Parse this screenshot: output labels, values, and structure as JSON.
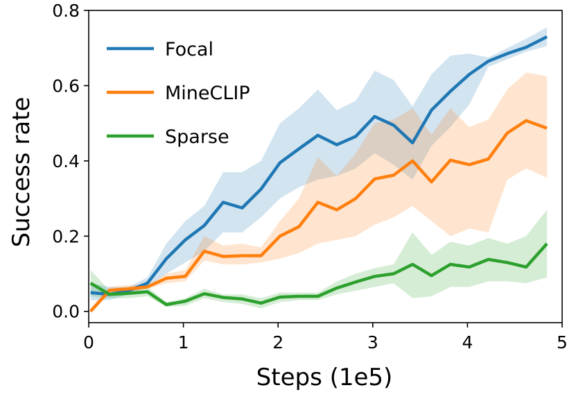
{
  "chart_data": {
    "type": "line",
    "xlabel": "Steps (1e5)",
    "ylabel": "Success rate",
    "xlim": [
      0,
      5
    ],
    "ylim": [
      -0.03,
      0.8
    ],
    "x_ticks": [
      "0",
      "1",
      "2",
      "3",
      "4",
      "5"
    ],
    "y_ticks": [
      "0.0",
      "0.2",
      "0.4",
      "0.6",
      "0.8"
    ],
    "grid": false,
    "legend_position": "top-left",
    "x": [
      0.02,
      0.22,
      0.42,
      0.62,
      0.82,
      1.02,
      1.22,
      1.42,
      1.62,
      1.82,
      2.02,
      2.22,
      2.42,
      2.62,
      2.82,
      3.02,
      3.22,
      3.42,
      3.62,
      3.82,
      4.02,
      4.22,
      4.42,
      4.62,
      4.84
    ],
    "series": [
      {
        "name": "Focal",
        "color": "#1f77b4",
        "values": [
          0.05,
          0.045,
          0.055,
          0.075,
          0.14,
          0.19,
          0.228,
          0.29,
          0.275,
          0.325,
          0.395,
          0.432,
          0.468,
          0.443,
          0.465,
          0.518,
          0.495,
          0.448,
          0.535,
          0.585,
          0.63,
          0.665,
          0.685,
          0.702,
          0.73
        ],
        "lower": [
          0.03,
          0.03,
          0.045,
          0.065,
          0.1,
          0.13,
          0.16,
          0.21,
          0.21,
          0.25,
          0.3,
          0.33,
          0.35,
          0.36,
          0.38,
          0.42,
          0.39,
          0.35,
          0.44,
          0.49,
          0.55,
          0.65,
          0.67,
          0.69,
          0.705
        ],
        "upper": [
          0.075,
          0.065,
          0.065,
          0.09,
          0.18,
          0.24,
          0.28,
          0.37,
          0.37,
          0.4,
          0.5,
          0.54,
          0.59,
          0.535,
          0.56,
          0.64,
          0.615,
          0.545,
          0.63,
          0.68,
          0.685,
          0.675,
          0.7,
          0.725,
          0.755
        ]
      },
      {
        "name": "MineCLIP",
        "color": "#ff7f0e",
        "values": [
          0.0,
          0.056,
          0.06,
          0.065,
          0.088,
          0.093,
          0.16,
          0.146,
          0.148,
          0.148,
          0.2,
          0.225,
          0.29,
          0.27,
          0.3,
          0.352,
          0.362,
          0.4,
          0.344,
          0.402,
          0.39,
          0.405,
          0.474,
          0.507,
          0.487
        ],
        "lower": [
          0.0,
          0.045,
          0.05,
          0.06,
          0.075,
          0.08,
          0.135,
          0.125,
          0.125,
          0.13,
          0.14,
          0.155,
          0.18,
          0.19,
          0.2,
          0.23,
          0.25,
          0.28,
          0.24,
          0.2,
          0.22,
          0.21,
          0.35,
          0.38,
          0.355
        ],
        "upper": [
          0.01,
          0.065,
          0.07,
          0.07,
          0.1,
          0.11,
          0.2,
          0.175,
          0.18,
          0.17,
          0.24,
          0.3,
          0.41,
          0.36,
          0.42,
          0.5,
          0.51,
          0.54,
          0.47,
          0.54,
          0.49,
          0.51,
          0.59,
          0.635,
          0.625
        ]
      },
      {
        "name": "Sparse",
        "color": "#2ca02c",
        "values": [
          0.075,
          0.045,
          0.048,
          0.052,
          0.018,
          0.027,
          0.047,
          0.037,
          0.033,
          0.022,
          0.038,
          0.04,
          0.04,
          0.062,
          0.078,
          0.093,
          0.1,
          0.125,
          0.095,
          0.125,
          0.118,
          0.138,
          0.13,
          0.118,
          0.18
        ],
        "lower": [
          0.04,
          0.035,
          0.035,
          0.04,
          0.012,
          0.015,
          0.035,
          0.025,
          0.02,
          0.008,
          0.025,
          0.03,
          0.03,
          0.045,
          0.055,
          0.065,
          0.075,
          0.035,
          0.04,
          0.065,
          0.065,
          0.08,
          0.08,
          0.075,
          0.09
        ],
        "upper": [
          0.11,
          0.055,
          0.06,
          0.065,
          0.025,
          0.035,
          0.06,
          0.045,
          0.045,
          0.035,
          0.05,
          0.05,
          0.05,
          0.08,
          0.1,
          0.115,
          0.125,
          0.21,
          0.15,
          0.185,
          0.175,
          0.195,
          0.18,
          0.2,
          0.27
        ]
      }
    ]
  }
}
